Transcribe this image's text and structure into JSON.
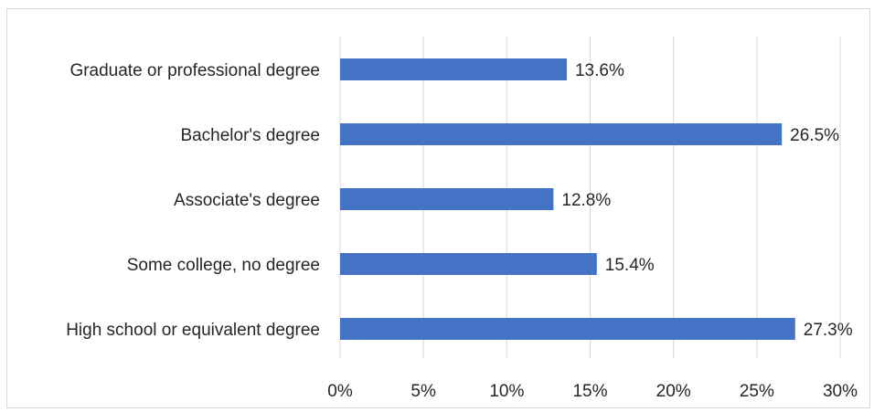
{
  "chart_data": {
    "type": "bar",
    "orientation": "horizontal",
    "title": "",
    "xlabel": "",
    "ylabel": "",
    "categories": [
      "Graduate or professional degree",
      "Bachelor's degree",
      "Associate's degree",
      "Some college, no degree",
      "High school or equivalent degree"
    ],
    "values": [
      13.6,
      26.5,
      12.8,
      15.4,
      27.3
    ],
    "value_labels": [
      "13.6%",
      "26.5%",
      "12.8%",
      "15.4%",
      "27.3%"
    ],
    "xlim": [
      0,
      30
    ],
    "x_ticks": [
      "0%",
      "5%",
      "10%",
      "15%",
      "20%",
      "25%",
      "30%"
    ],
    "grid": "vertical",
    "legend": "none",
    "bar_color": "#4472c4",
    "grid_color": "#d9d9d9"
  }
}
